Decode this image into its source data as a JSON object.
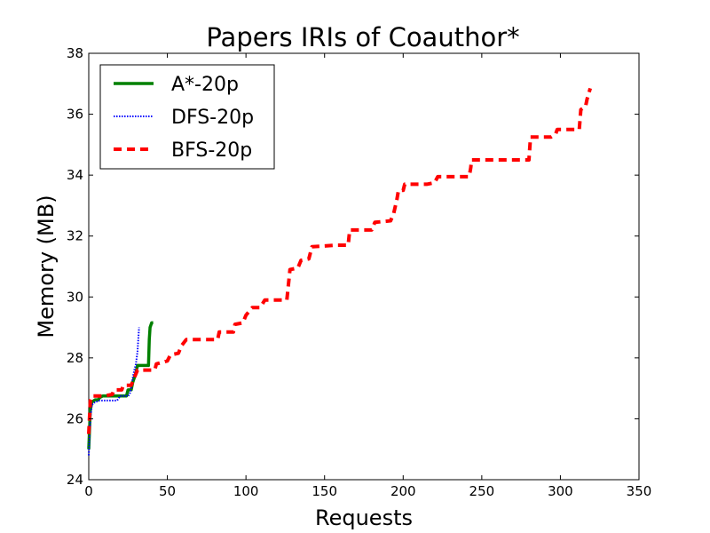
{
  "chart_data": {
    "type": "line",
    "title": "Papers IRIs of Coauthor*",
    "xlabel": "Requests",
    "ylabel": "Memory (MB)",
    "xlim": [
      0,
      350
    ],
    "ylim": [
      24,
      38
    ],
    "xticks": [
      0,
      50,
      100,
      150,
      200,
      250,
      300,
      350
    ],
    "yticks": [
      24,
      26,
      28,
      30,
      32,
      34,
      36,
      38
    ],
    "grid": false,
    "legend_position": "top-left",
    "series": [
      {
        "name": "A*-20p",
        "color": "#008000",
        "style": "solid",
        "points": [
          [
            0,
            25.0
          ],
          [
            1,
            26.3
          ],
          [
            2,
            26.55
          ],
          [
            4,
            26.62
          ],
          [
            6,
            26.62
          ],
          [
            7,
            26.7
          ],
          [
            9,
            26.75
          ],
          [
            12,
            26.75
          ],
          [
            18,
            26.75
          ],
          [
            24,
            26.75
          ],
          [
            25,
            26.95
          ],
          [
            27,
            26.95
          ],
          [
            28,
            27.2
          ],
          [
            30,
            27.5
          ],
          [
            31,
            27.75
          ],
          [
            35,
            27.75
          ],
          [
            38,
            27.75
          ],
          [
            38.5,
            28.6
          ],
          [
            39,
            29.0
          ],
          [
            40,
            29.15
          ],
          [
            41,
            29.15
          ]
        ]
      },
      {
        "name": "DFS-20p",
        "color": "#0000ff",
        "style": "dotted",
        "points": [
          [
            0,
            24.8
          ],
          [
            1,
            26.0
          ],
          [
            2,
            26.45
          ],
          [
            4,
            26.55
          ],
          [
            7,
            26.6
          ],
          [
            10,
            26.6
          ],
          [
            15,
            26.6
          ],
          [
            18,
            26.6
          ],
          [
            20,
            26.75
          ],
          [
            25,
            26.75
          ],
          [
            26,
            26.8
          ],
          [
            27,
            27.0
          ],
          [
            28,
            27.35
          ],
          [
            29,
            27.6
          ],
          [
            30,
            27.8
          ],
          [
            31,
            28.2
          ],
          [
            32,
            29.0
          ]
        ]
      },
      {
        "name": "BFS-20p",
        "color": "#ff0000",
        "style": "dashed",
        "points": [
          [
            0,
            25.5
          ],
          [
            1,
            26.6
          ],
          [
            2,
            26.75
          ],
          [
            10,
            26.75
          ],
          [
            15,
            26.8
          ],
          [
            16,
            26.95
          ],
          [
            21,
            26.95
          ],
          [
            22,
            27.1
          ],
          [
            27,
            27.1
          ],
          [
            29,
            27.35
          ],
          [
            31,
            27.6
          ],
          [
            42,
            27.6
          ],
          [
            43,
            27.8
          ],
          [
            50,
            27.9
          ],
          [
            52,
            28.1
          ],
          [
            57,
            28.15
          ],
          [
            59,
            28.4
          ],
          [
            62,
            28.6
          ],
          [
            82,
            28.6
          ],
          [
            83,
            28.85
          ],
          [
            92,
            28.85
          ],
          [
            93,
            29.1
          ],
          [
            98,
            29.15
          ],
          [
            100,
            29.4
          ],
          [
            104,
            29.65
          ],
          [
            109,
            29.65
          ],
          [
            112,
            29.9
          ],
          [
            126,
            29.9
          ],
          [
            128,
            30.9
          ],
          [
            133,
            30.95
          ],
          [
            135,
            31.2
          ],
          [
            140,
            31.25
          ],
          [
            142,
            31.65
          ],
          [
            158,
            31.7
          ],
          [
            165,
            31.7
          ],
          [
            166,
            32.2
          ],
          [
            180,
            32.2
          ],
          [
            182,
            32.45
          ],
          [
            192,
            32.5
          ],
          [
            194,
            32.75
          ],
          [
            196,
            33.2
          ],
          [
            197,
            33.5
          ],
          [
            200,
            33.5
          ],
          [
            201,
            33.7
          ],
          [
            215,
            33.7
          ],
          [
            220,
            33.75
          ],
          [
            222,
            33.95
          ],
          [
            242,
            33.95
          ],
          [
            243,
            34.25
          ],
          [
            243.5,
            34.5
          ],
          [
            280,
            34.5
          ],
          [
            281,
            35.25
          ],
          [
            294,
            35.25
          ],
          [
            297,
            35.35
          ],
          [
            298,
            35.5
          ],
          [
            312,
            35.5
          ],
          [
            313,
            36.15
          ],
          [
            316,
            36.25
          ],
          [
            317,
            36.5
          ],
          [
            319,
            36.85
          ]
        ]
      }
    ]
  }
}
